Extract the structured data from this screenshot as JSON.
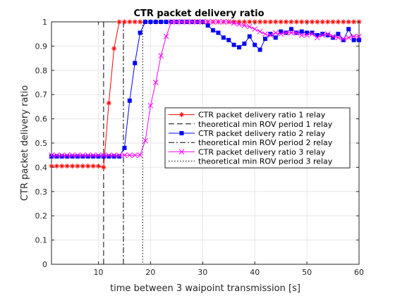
{
  "chart_data": {
    "type": "line",
    "title": "CTR packet delivery ratio",
    "xlabel": "time between 3 waipoint transmission [s]",
    "ylabel": "CTR packet delivery ratio",
    "xlim": [
      1,
      60
    ],
    "ylim": [
      0,
      1
    ],
    "xticks": [
      10,
      20,
      30,
      40,
      50,
      60
    ],
    "yticks": [
      0,
      0.1,
      0.2,
      0.3,
      0.4,
      0.5,
      0.6,
      0.7,
      0.8,
      0.9,
      1
    ],
    "grid": true,
    "legend_position": "center-right",
    "series": [
      {
        "name": "CTR packet delivery ratio 1 relay",
        "color": "#ff0000",
        "marker": "asterisk",
        "x": [
          1,
          2,
          3,
          4,
          5,
          6,
          7,
          8,
          9,
          10,
          11,
          12,
          13,
          14,
          15,
          16,
          17,
          18,
          19,
          20,
          21,
          22,
          23,
          24,
          25,
          26,
          27,
          28,
          29,
          30,
          31,
          32,
          33,
          34,
          35,
          36,
          37,
          38,
          39,
          40,
          41,
          42,
          43,
          44,
          45,
          46,
          47,
          48,
          49,
          50,
          51,
          52,
          53,
          54,
          55,
          56,
          57,
          58,
          59,
          60
        ],
        "y": [
          0.405,
          0.405,
          0.405,
          0.405,
          0.405,
          0.405,
          0.405,
          0.405,
          0.405,
          0.405,
          0.4,
          0.665,
          0.89,
          1,
          1,
          1,
          1,
          1,
          1,
          1,
          1,
          1,
          1,
          1,
          1,
          1,
          1,
          1,
          1,
          1,
          1,
          1,
          1,
          1,
          1,
          1,
          1,
          1,
          1,
          1,
          1,
          1,
          1,
          1,
          1,
          1,
          1,
          1,
          1,
          1,
          1,
          1,
          1,
          1,
          1,
          1,
          1,
          1,
          1,
          1
        ]
      },
      {
        "name": "theoretical min ROV period 1 relay",
        "color": "#000000",
        "dash": "dashed",
        "vline": 11
      },
      {
        "name": "CTR packet delivery ratio 2 relay",
        "color": "#0000ff",
        "marker": "square",
        "x": [
          1,
          2,
          3,
          4,
          5,
          6,
          7,
          8,
          9,
          10,
          11,
          12,
          13,
          14,
          15,
          16,
          17,
          18,
          19,
          20,
          21,
          22,
          23,
          24,
          25,
          26,
          27,
          28,
          29,
          30,
          31,
          32,
          33,
          34,
          35,
          36,
          37,
          38,
          39,
          40,
          41,
          42,
          43,
          44,
          45,
          46,
          47,
          48,
          49,
          50,
          51,
          52,
          53,
          54,
          55,
          56,
          57,
          58,
          59,
          60
        ],
        "y": [
          0.445,
          0.445,
          0.445,
          0.445,
          0.445,
          0.445,
          0.445,
          0.445,
          0.445,
          0.445,
          0.445,
          0.445,
          0.445,
          0.445,
          0.48,
          0.675,
          0.83,
          0.955,
          1,
          1,
          1,
          1,
          1,
          1,
          1,
          1,
          1,
          1,
          1,
          1,
          0.985,
          0.965,
          0.955,
          0.935,
          0.925,
          0.905,
          0.895,
          0.91,
          0.94,
          0.905,
          0.885,
          0.93,
          0.95,
          0.935,
          0.96,
          0.955,
          0.97,
          0.955,
          0.96,
          0.955,
          0.955,
          0.945,
          0.95,
          0.945,
          0.935,
          0.95,
          0.925,
          0.97,
          0.925,
          0.925
        ]
      },
      {
        "name": "theoretical min ROV period 2 relay",
        "color": "#000000",
        "dash": "dashdot",
        "vline": 14.8
      },
      {
        "name": "CTR packet delivery ratio 3 relay",
        "color": "#ff00ff",
        "marker": "x",
        "x": [
          1,
          2,
          3,
          4,
          5,
          6,
          7,
          8,
          9,
          10,
          11,
          12,
          13,
          14,
          15,
          16,
          17,
          18,
          19,
          20,
          21,
          22,
          23,
          24,
          25,
          26,
          27,
          28,
          29,
          30,
          31,
          32,
          33,
          34,
          35,
          36,
          37,
          38,
          39,
          40,
          41,
          42,
          43,
          44,
          45,
          46,
          47,
          48,
          49,
          50,
          51,
          52,
          53,
          54,
          55,
          56,
          57,
          58,
          59,
          60
        ],
        "y": [
          0.45,
          0.45,
          0.45,
          0.45,
          0.45,
          0.45,
          0.45,
          0.45,
          0.45,
          0.45,
          0.45,
          0.45,
          0.45,
          0.45,
          0.45,
          0.45,
          0.45,
          0.45,
          0.51,
          0.655,
          0.75,
          0.86,
          0.94,
          1,
          1,
          1,
          1,
          1,
          1,
          1,
          1,
          1,
          1,
          1,
          1,
          0.995,
          0.99,
          0.985,
          0.98,
          0.97,
          0.96,
          0.95,
          0.945,
          0.955,
          0.95,
          0.955,
          0.955,
          0.955,
          0.945,
          0.945,
          0.95,
          0.935,
          0.945,
          0.95,
          0.94,
          0.935,
          0.93,
          0.935,
          0.94,
          0.94
        ]
      },
      {
        "name": "theoretical min ROV period 3 relay",
        "color": "#000000",
        "dash": "dotted",
        "vline": 18.5
      }
    ]
  }
}
